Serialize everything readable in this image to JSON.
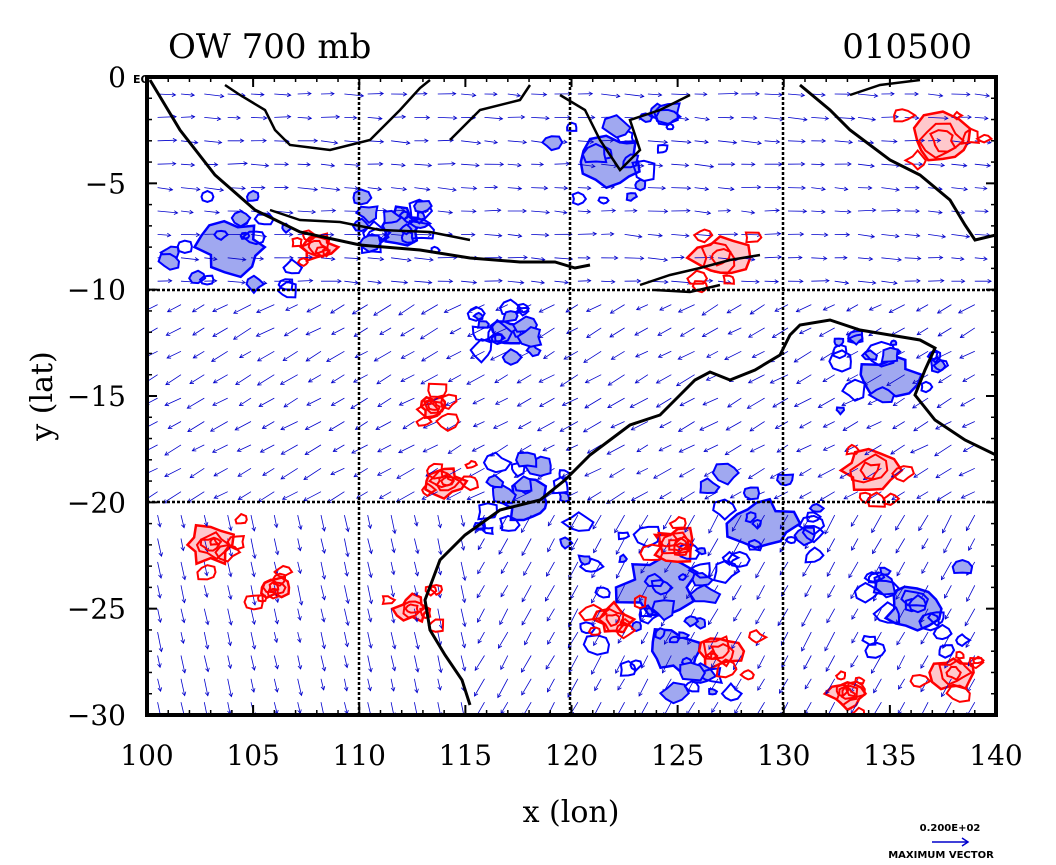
{
  "header": {
    "title_left": "OW 700 mb",
    "title_right": "010500"
  },
  "footer": {
    "vector_scale_value": "0.200E+02",
    "vector_scale_label": "MAXIMUM VECTOR"
  },
  "colors": {
    "positive_contour": "#ff0000",
    "positive_fill": "#ffc8cc",
    "negative_contour": "#0000ff",
    "negative_fill": "#a0a8f0",
    "vectors": "#0000cc",
    "coastline": "#000000"
  },
  "chart_data": {
    "type": "contour_vector_map",
    "title": "OW 700 mb",
    "time_label": "010500",
    "xlabel": "x (lon)",
    "ylabel": "y (lat)",
    "xlim": [
      100,
      140
    ],
    "ylim": [
      -30,
      0
    ],
    "x_ticks": [
      100,
      105,
      110,
      115,
      120,
      125,
      130,
      135,
      140
    ],
    "y_ticks": [
      0,
      -5,
      -10,
      -15,
      -20,
      -25,
      -30
    ],
    "y_tick_labels": [
      "0 EQ",
      "−5",
      "−10",
      "−15",
      "−20",
      "−25",
      "−30"
    ],
    "grid_lines_x": [
      110,
      120,
      130
    ],
    "grid_lines_y": [
      -10,
      -20
    ],
    "grid": true,
    "vector_max_label": "0.200E+02",
    "vector_label": "MAXIMUM VECTOR",
    "features": {
      "positive_regions": [
        {
          "lon": 114,
          "lat": -19,
          "r": 0.7
        },
        {
          "lon": 113.5,
          "lat": -15.5,
          "r": 0.5
        },
        {
          "lon": 103,
          "lat": -22,
          "r": 0.9
        },
        {
          "lon": 106,
          "lat": -24,
          "r": 0.5
        },
        {
          "lon": 112.5,
          "lat": -25,
          "r": 0.6
        },
        {
          "lon": 125,
          "lat": -22,
          "r": 0.8
        },
        {
          "lon": 127,
          "lat": -27,
          "r": 0.9
        },
        {
          "lon": 134,
          "lat": -18.5,
          "r": 1.0
        },
        {
          "lon": 137.5,
          "lat": -3,
          "r": 1.2
        },
        {
          "lon": 127,
          "lat": -8.5,
          "r": 1.0
        },
        {
          "lon": 133,
          "lat": -29,
          "r": 0.7
        },
        {
          "lon": 138,
          "lat": -28,
          "r": 0.8
        },
        {
          "lon": 122,
          "lat": -25.5,
          "r": 0.7
        },
        {
          "lon": 108,
          "lat": -8,
          "r": 0.7
        }
      ],
      "negative_regions": [
        {
          "lon": 104,
          "lat": -8,
          "r": 1.2
        },
        {
          "lon": 124,
          "lat": -24,
          "r": 1.4
        },
        {
          "lon": 122,
          "lat": -4,
          "r": 1.2
        },
        {
          "lon": 135,
          "lat": -14,
          "r": 1.0
        },
        {
          "lon": 129,
          "lat": -21,
          "r": 1.2
        },
        {
          "lon": 118,
          "lat": -20,
          "r": 1.0
        },
        {
          "lon": 136,
          "lat": -25,
          "r": 1.0
        },
        {
          "lon": 112,
          "lat": -7,
          "r": 0.8
        },
        {
          "lon": 117,
          "lat": -12,
          "r": 0.6
        },
        {
          "lon": 125,
          "lat": -27,
          "r": 1.1
        }
      ]
    }
  }
}
